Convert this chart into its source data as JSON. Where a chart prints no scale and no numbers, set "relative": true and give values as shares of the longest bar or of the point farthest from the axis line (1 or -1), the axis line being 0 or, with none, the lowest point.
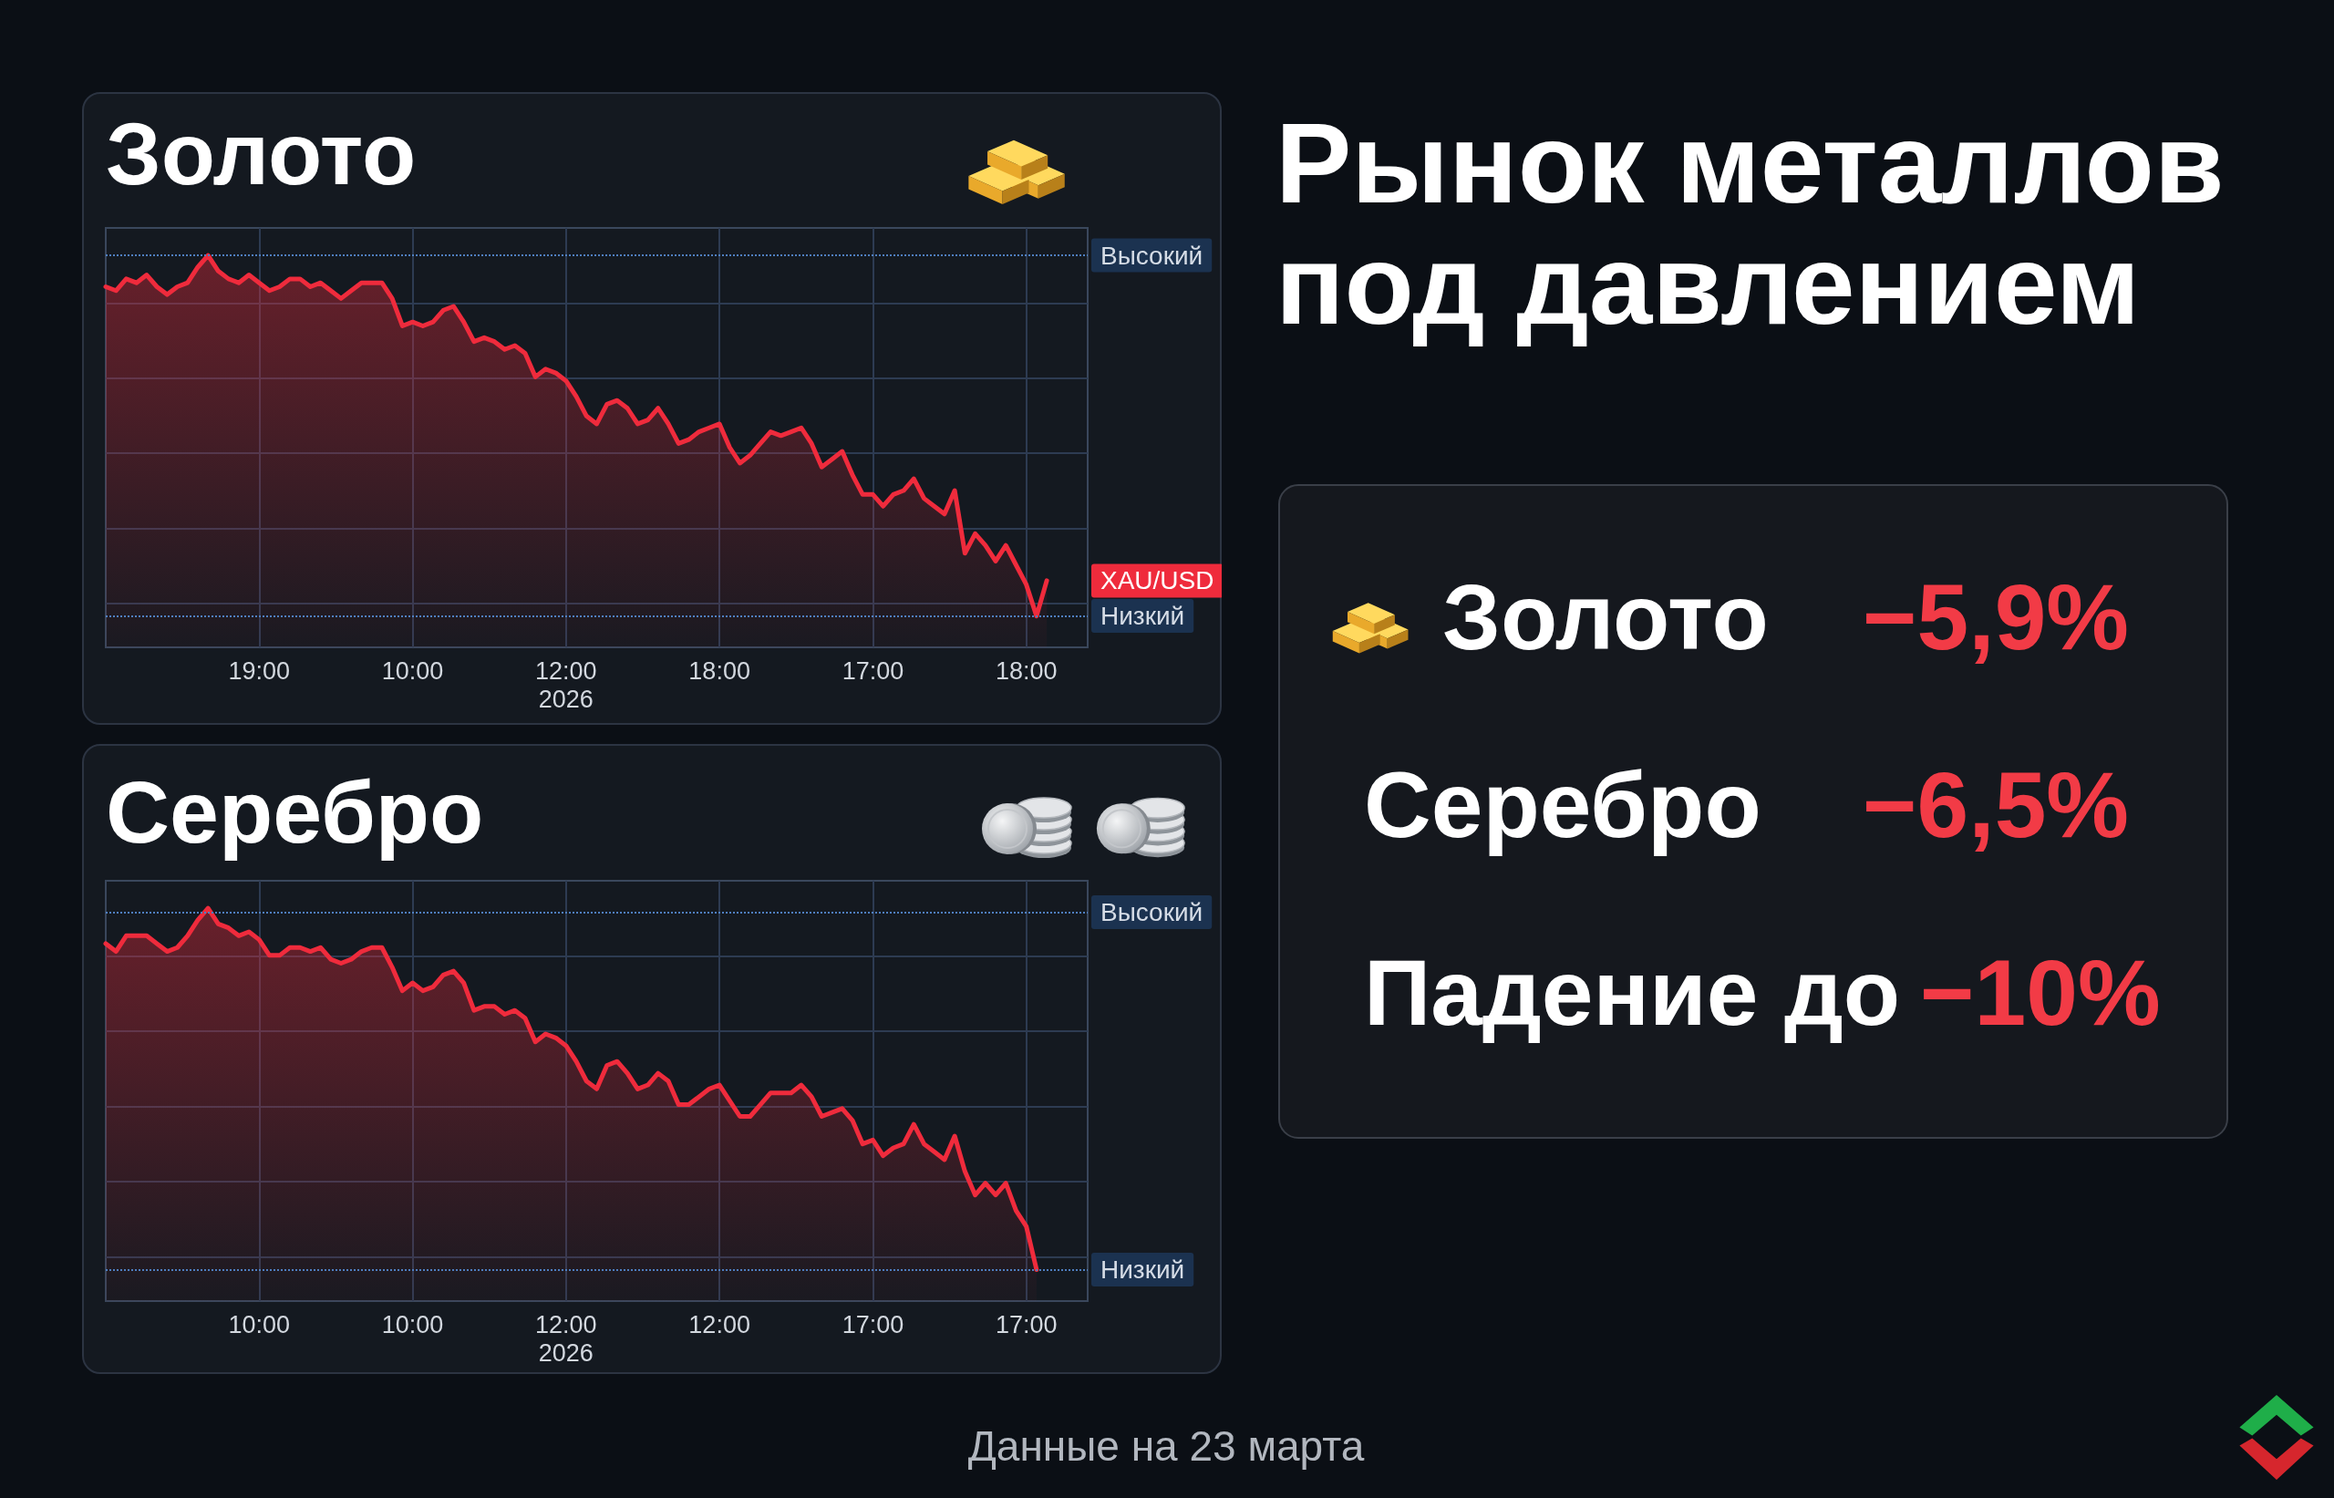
{
  "chart_data": [
    {
      "type": "area",
      "title": "Золото",
      "relative": true,
      "grid": true,
      "marker": "none",
      "color": "#ef2b3c",
      "categories": [
        null,
        null,
        null,
        null,
        null,
        null,
        null,
        null,
        null,
        null,
        null,
        null,
        null,
        null,
        null,
        "19:00",
        null,
        null,
        null,
        null,
        null,
        null,
        null,
        null,
        null,
        null,
        null,
        null,
        null,
        null,
        "10:00",
        null,
        null,
        null,
        null,
        null,
        null,
        null,
        null,
        null,
        null,
        null,
        null,
        null,
        null,
        "12:00\n2026",
        null,
        null,
        null,
        null,
        null,
        null,
        null,
        null,
        null,
        null,
        null,
        null,
        null,
        null,
        "18:00",
        null,
        null,
        null,
        null,
        null,
        null,
        null,
        null,
        null,
        null,
        null,
        null,
        null,
        null,
        "17:00",
        null,
        null,
        null,
        null,
        null,
        null,
        null,
        null,
        null,
        null,
        null,
        null,
        null,
        null,
        "18:00",
        null,
        null,
        null,
        null,
        null,
        null
      ],
      "values": [
        0.92,
        0.91,
        0.94,
        0.93,
        0.95,
        0.92,
        0.9,
        0.92,
        0.93,
        0.97,
        1,
        0.96,
        0.94,
        0.93,
        0.95,
        0.93,
        0.91,
        0.92,
        0.94,
        0.94,
        0.92,
        0.93,
        0.91,
        0.89,
        0.91,
        0.93,
        0.93,
        0.93,
        0.89,
        0.82,
        0.83,
        0.82,
        0.83,
        0.86,
        0.87,
        0.83,
        0.78,
        0.79,
        0.78,
        0.76,
        0.77,
        0.75,
        0.69,
        0.71,
        0.7,
        0.68,
        0.64,
        0.59,
        0.57,
        0.62,
        0.63,
        0.61,
        0.57,
        0.58,
        0.61,
        0.57,
        0.52,
        0.53,
        0.55,
        0.56,
        0.57,
        0.51,
        0.47,
        0.49,
        0.52,
        0.55,
        0.54,
        0.55,
        0.56,
        0.52,
        0.46,
        0.48,
        0.5,
        0.44,
        0.39,
        0.39,
        0.36,
        0.39,
        0.4,
        0.43,
        0.38,
        0.36,
        0.34,
        0.4,
        0.24,
        0.29,
        0.26,
        0.22,
        0.26,
        0.21,
        0.16,
        0.08,
        0.17,
        null,
        null,
        null,
        null
      ],
      "ref_lines": [
        {
          "axis": "y",
          "value": 1,
          "label": "Высокий",
          "color": "#4f7fc0",
          "line_style": "dotted"
        },
        {
          "axis": "y",
          "value": 0.08,
          "label": "Низкий",
          "color": "#4f7fc0",
          "line_style": "dotted"
        }
      ],
      "annotations": [
        "XAU/USD"
      ]
    },
    {
      "type": "area",
      "title": "Серебро",
      "relative": true,
      "grid": true,
      "marker": "none",
      "color": "#ef2b3c",
      "categories": [
        null,
        null,
        null,
        null,
        null,
        null,
        null,
        null,
        null,
        null,
        null,
        null,
        null,
        null,
        null,
        "10:00",
        null,
        null,
        null,
        null,
        null,
        null,
        null,
        null,
        null,
        null,
        null,
        null,
        null,
        null,
        "10:00",
        null,
        null,
        null,
        null,
        null,
        null,
        null,
        null,
        null,
        null,
        null,
        null,
        null,
        null,
        "12:00\n2026",
        null,
        null,
        null,
        null,
        null,
        null,
        null,
        null,
        null,
        null,
        null,
        null,
        null,
        null,
        "12:00",
        null,
        null,
        null,
        null,
        null,
        null,
        null,
        null,
        null,
        null,
        null,
        null,
        null,
        null,
        "17:00",
        null,
        null,
        null,
        null,
        null,
        null,
        null,
        null,
        null,
        null,
        null,
        null,
        null,
        null,
        "17:00",
        null,
        null,
        null,
        null,
        null,
        null
      ],
      "values": [
        0.91,
        0.89,
        0.93,
        0.93,
        0.93,
        0.91,
        0.89,
        0.9,
        0.93,
        0.97,
        1,
        0.96,
        0.95,
        0.93,
        0.94,
        0.92,
        0.88,
        0.88,
        0.9,
        0.9,
        0.89,
        0.9,
        0.87,
        0.86,
        0.87,
        0.89,
        0.9,
        0.9,
        0.85,
        0.79,
        0.81,
        0.79,
        0.8,
        0.83,
        0.84,
        0.81,
        0.74,
        0.75,
        0.75,
        0.73,
        0.74,
        0.72,
        0.66,
        0.68,
        0.67,
        0.65,
        0.61,
        0.56,
        0.54,
        0.6,
        0.61,
        0.58,
        0.54,
        0.55,
        0.58,
        0.56,
        0.5,
        0.5,
        0.52,
        0.54,
        0.55,
        0.51,
        0.47,
        0.47,
        0.5,
        0.53,
        0.53,
        0.53,
        0.55,
        0.52,
        0.47,
        0.48,
        0.49,
        0.46,
        0.4,
        0.41,
        0.37,
        0.39,
        0.4,
        0.45,
        0.4,
        0.38,
        0.36,
        0.42,
        0.33,
        0.27,
        0.3,
        0.27,
        0.3,
        0.23,
        0.19,
        0.08,
        null,
        null,
        null,
        null,
        null
      ],
      "ref_lines": [
        {
          "axis": "y",
          "value": 0.99,
          "label": "Высокий",
          "color": "#4f7fc0",
          "line_style": "dotted"
        },
        {
          "axis": "y",
          "value": 0.08,
          "label": "Низкий",
          "color": "#4f7fc0",
          "line_style": "dotted"
        }
      ]
    },
    {
      "type": "other",
      "title": "Рынок металлов под давлением",
      "annotations": [
        "Золото",
        "−5,9%",
        "Серебро",
        "−6,5%",
        "Падение до",
        "−10%",
        "Данные на 23 марта"
      ]
    }
  ]
}
